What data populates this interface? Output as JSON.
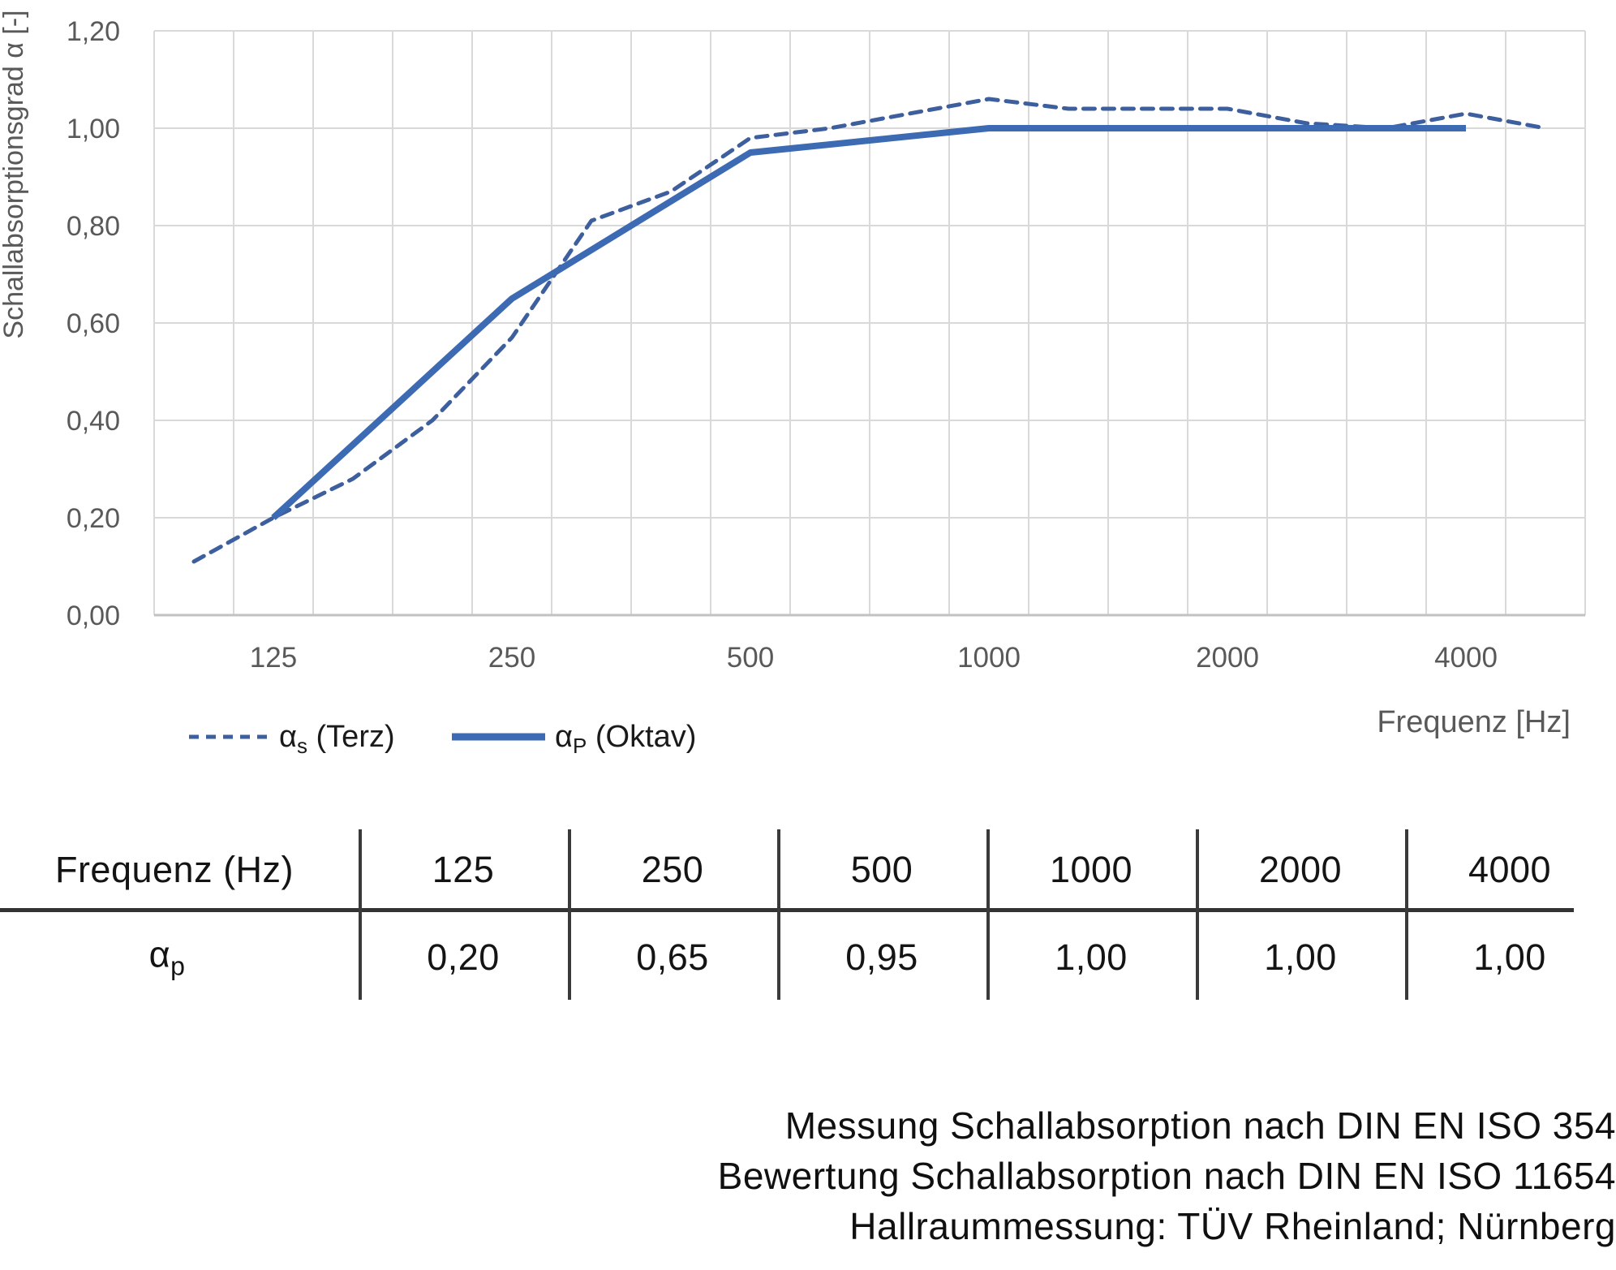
{
  "chart": {
    "y_axis_title": "Schallabsorptionsgrad α [-]",
    "x_axis_title": "Frequenz [Hz]",
    "y_ticks": [
      {
        "label": "1,20",
        "value": 1.2
      },
      {
        "label": "1,00",
        "value": 1.0
      },
      {
        "label": "0,80",
        "value": 0.8
      },
      {
        "label": "0,60",
        "value": 0.6
      },
      {
        "label": "0,40",
        "value": 0.4
      },
      {
        "label": "0,20",
        "value": 0.2
      },
      {
        "label": "0,00",
        "value": 0.0
      }
    ],
    "x_ticks": [
      {
        "label": "125",
        "category_index": 1
      },
      {
        "label": "250",
        "category_index": 4
      },
      {
        "label": "500",
        "category_index": 7
      },
      {
        "label": "1000",
        "category_index": 10
      },
      {
        "label": "2000",
        "category_index": 13
      },
      {
        "label": "4000",
        "category_index": 16
      }
    ],
    "legend": [
      {
        "base": "α",
        "sub": "s",
        "rest": " (Terz)",
        "style": "dashed"
      },
      {
        "base": "α",
        "sub": "P",
        "rest": " (Oktav)",
        "style": "solid"
      }
    ],
    "colors": {
      "series_solid": "#3c6ab3",
      "series_dashed": "#3e5f9e",
      "gridline": "#d9d9d9",
      "axis_line": "#c2c2c2",
      "tick_text": "#595959"
    }
  },
  "chart_data": {
    "type": "line",
    "title": "",
    "xlabel": "Frequenz [Hz]",
    "ylabel": "Schallabsorptionsgrad α [-]",
    "ylim": [
      0.0,
      1.2
    ],
    "y_tick_step": 0.2,
    "grid": true,
    "x_scale": "categorical third-octave bands",
    "categories": [
      100,
      125,
      160,
      200,
      250,
      315,
      400,
      500,
      630,
      800,
      1000,
      1250,
      1600,
      2000,
      2500,
      3150,
      4000,
      5000
    ],
    "series": [
      {
        "name": "αs (Terz)",
        "style": "dashed",
        "x": [
          100,
          125,
          160,
          200,
          250,
          315,
          400,
          500,
          630,
          800,
          1000,
          1250,
          1600,
          2000,
          2500,
          3150,
          4000,
          5000
        ],
        "values": [
          0.11,
          0.2,
          0.28,
          0.4,
          0.57,
          0.81,
          0.87,
          0.98,
          1.0,
          1.03,
          1.06,
          1.04,
          1.04,
          1.04,
          1.01,
          1.0,
          1.03,
          1.0
        ]
      },
      {
        "name": "αP (Oktav)",
        "style": "solid",
        "x": [
          125,
          250,
          500,
          1000,
          2000,
          4000
        ],
        "values": [
          0.2,
          0.65,
          0.95,
          1.0,
          1.0,
          1.0
        ]
      }
    ],
    "legend_position": "bottom-left"
  },
  "table": {
    "header_label": "Frequenz (Hz)",
    "row_label_base": "α",
    "row_label_sub": "p",
    "columns": [
      "125",
      "250",
      "500",
      "1000",
      "2000",
      "4000"
    ],
    "values": [
      "0,20",
      "0,65",
      "0,95",
      "1,00",
      "1,00",
      "1,00"
    ]
  },
  "footer": {
    "lines": [
      "Messung Schallabsorption nach DIN EN ISO 354",
      "Bewertung Schallabsorption nach DIN EN ISO 11654",
      "Hallraummessung: TÜV Rheinland; Nürnberg"
    ]
  }
}
